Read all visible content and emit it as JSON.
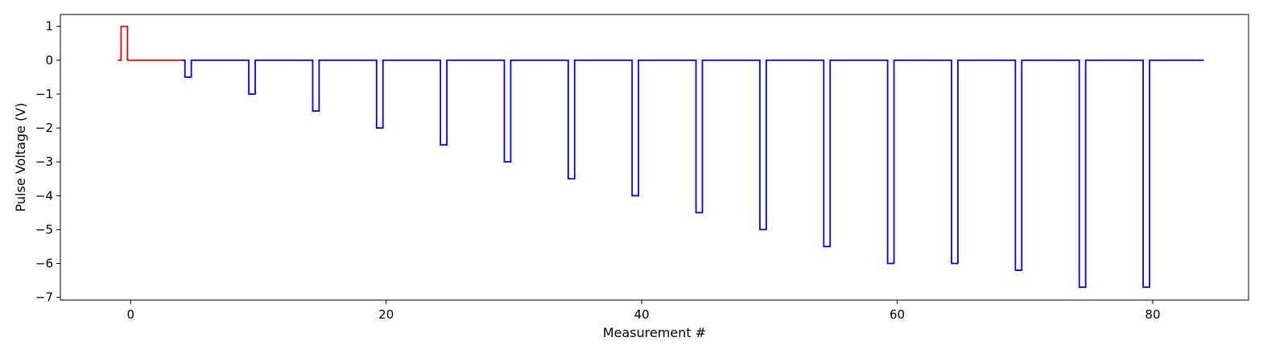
{
  "chart_data": {
    "type": "line",
    "step": true,
    "xlabel": "Measurement #",
    "ylabel": "Pulse Voltage (V)",
    "xlim": [
      -5.5,
      87.5
    ],
    "ylim": [
      -7.08,
      1.35
    ],
    "xticks": [
      0,
      20,
      40,
      60,
      80
    ],
    "xtick_labels": [
      "0",
      "20",
      "40",
      "60",
      "80"
    ],
    "yticks": [
      1,
      0,
      -1,
      -2,
      -3,
      -4,
      -5,
      -6,
      -7
    ],
    "ytick_labels": [
      "1",
      "0",
      "−1",
      "−2",
      "−3",
      "−4",
      "−5",
      "−6",
      "−7"
    ],
    "grid": false,
    "legend": null,
    "series": [
      {
        "color": "#ff0000",
        "points": [
          [
            -1,
            0
          ],
          [
            -0.75,
            0
          ],
          [
            -0.75,
            1
          ],
          [
            -0.25,
            1
          ],
          [
            -0.25,
            0
          ],
          [
            4,
            0
          ]
        ]
      },
      {
        "color": "#0000ff",
        "points": [
          [
            4,
            0
          ],
          [
            4.25,
            0
          ],
          [
            4.25,
            -0.5
          ],
          [
            4.75,
            -0.5
          ],
          [
            4.75,
            0
          ],
          [
            9.25,
            0
          ],
          [
            9.25,
            -1
          ],
          [
            9.75,
            -1
          ],
          [
            9.75,
            0
          ],
          [
            14.25,
            0
          ],
          [
            14.25,
            -1.5
          ],
          [
            14.75,
            -1.5
          ],
          [
            14.75,
            0
          ],
          [
            19.25,
            0
          ],
          [
            19.25,
            -2
          ],
          [
            19.75,
            -2
          ],
          [
            19.75,
            0
          ],
          [
            24.25,
            0
          ],
          [
            24.25,
            -2.5
          ],
          [
            24.75,
            -2.5
          ],
          [
            24.75,
            0
          ],
          [
            29.25,
            0
          ],
          [
            29.25,
            -3
          ],
          [
            29.75,
            -3
          ],
          [
            29.75,
            0
          ],
          [
            34.25,
            0
          ],
          [
            34.25,
            -3.5
          ],
          [
            34.75,
            -3.5
          ],
          [
            34.75,
            0
          ],
          [
            39.25,
            0
          ],
          [
            39.25,
            -4
          ],
          [
            39.75,
            -4
          ],
          [
            39.75,
            0
          ],
          [
            44.25,
            0
          ],
          [
            44.25,
            -4.5
          ],
          [
            44.75,
            -4.5
          ],
          [
            44.75,
            0
          ],
          [
            49.25,
            0
          ],
          [
            49.25,
            -5
          ],
          [
            49.75,
            -5
          ],
          [
            49.75,
            0
          ],
          [
            54.25,
            0
          ],
          [
            54.25,
            -5.5
          ],
          [
            54.75,
            -5.5
          ],
          [
            54.75,
            0
          ],
          [
            59.25,
            0
          ],
          [
            59.25,
            -6
          ],
          [
            59.75,
            -6
          ],
          [
            59.75,
            0
          ],
          [
            64.25,
            0
          ],
          [
            64.25,
            -6
          ],
          [
            64.75,
            -6
          ],
          [
            64.75,
            0
          ],
          [
            69.25,
            0
          ],
          [
            69.25,
            -6.2
          ],
          [
            69.75,
            -6.2
          ],
          [
            69.75,
            0
          ],
          [
            74.25,
            0
          ],
          [
            74.25,
            -6.7
          ],
          [
            74.75,
            -6.7
          ],
          [
            74.75,
            0
          ],
          [
            79.25,
            0
          ],
          [
            79.25,
            -6.7
          ],
          [
            79.75,
            -6.7
          ],
          [
            79.75,
            0
          ],
          [
            84,
            0
          ]
        ]
      }
    ]
  }
}
